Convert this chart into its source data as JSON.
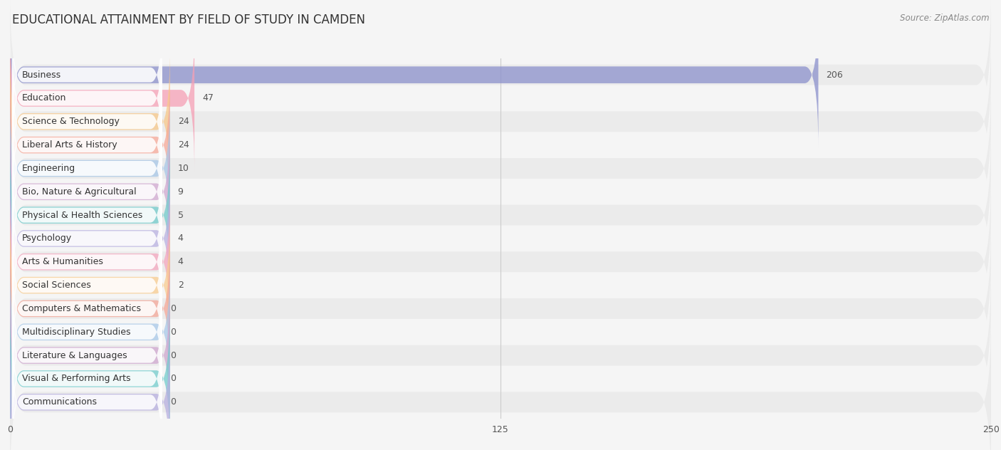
{
  "title": "EDUCATIONAL ATTAINMENT BY FIELD OF STUDY IN CAMDEN",
  "source": "Source: ZipAtlas.com",
  "categories": [
    "Business",
    "Education",
    "Science & Technology",
    "Liberal Arts & History",
    "Engineering",
    "Bio, Nature & Agricultural",
    "Physical & Health Sciences",
    "Psychology",
    "Arts & Humanities",
    "Social Sciences",
    "Computers & Mathematics",
    "Multidisciplinary Studies",
    "Literature & Languages",
    "Visual & Performing Arts",
    "Communications"
  ],
  "values": [
    206,
    47,
    24,
    24,
    10,
    9,
    5,
    4,
    4,
    2,
    0,
    0,
    0,
    0,
    0
  ],
  "bar_colors": [
    "#8b90cc",
    "#f5a0b5",
    "#f8c98a",
    "#f5a898",
    "#a8c8e8",
    "#d0a8d0",
    "#72cccc",
    "#b8b0e0",
    "#f5a8c0",
    "#f8cc90",
    "#f5a898",
    "#a8c8e8",
    "#d0a8d0",
    "#72cccc",
    "#b8b0e0"
  ],
  "xlim": [
    0,
    250
  ],
  "xticks": [
    0,
    125,
    250
  ],
  "background_color": "#f5f5f5",
  "row_bg_even": "#ebebeb",
  "row_bg_odd": "#f5f5f5",
  "title_fontsize": 12,
  "label_fontsize": 9,
  "value_fontsize": 9
}
